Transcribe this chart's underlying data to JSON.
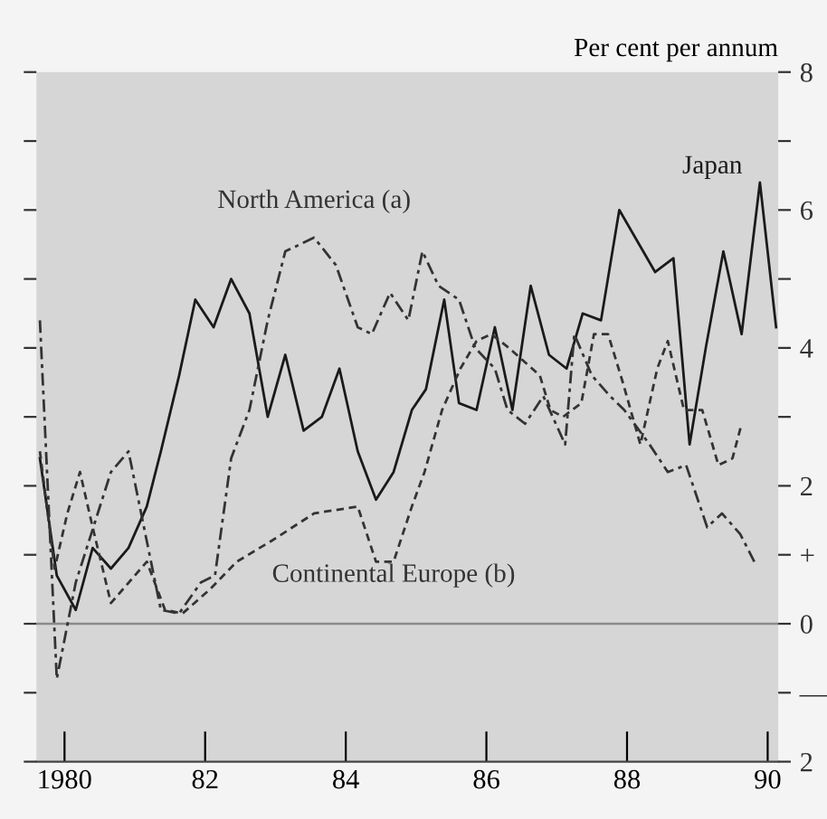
{
  "chart_data": {
    "type": "line",
    "ylabel": "Per cent per annum",
    "xlim": [
      1979.6,
      1990.15
    ],
    "xticks": [
      1980,
      {
        "value": 1982,
        "label": "82"
      },
      {
        "value": 1984,
        "label": "84"
      },
      {
        "value": 1986,
        "label": "86"
      },
      {
        "value": 1988,
        "label": "88"
      },
      {
        "value": 1990,
        "label": "90"
      }
    ],
    "ylim": [
      -2,
      8
    ],
    "yticks": [
      {
        "value": -2,
        "label": "2"
      },
      {
        "value": -1,
        "label": "—"
      },
      0,
      {
        "value": 1,
        "label": "+"
      },
      2,
      {
        "value": 3,
        "label": null
      },
      4,
      {
        "value": 5,
        "label": null
      },
      6,
      {
        "value": 7,
        "label": null
      },
      8
    ],
    "ref_lines": [
      {
        "axis": "y",
        "value": 0,
        "color": "#8a8a8a"
      }
    ],
    "grid": false,
    "legend": false,
    "marker": "none",
    "series": [
      {
        "name": "Japan",
        "color": "#1a1a1a",
        "line_style": "solid",
        "x": [
          1979.65,
          1979.89,
          1980.16,
          1980.4,
          1980.66,
          1980.91,
          1981.17,
          1981.37,
          1981.63,
          1981.86,
          1982.12,
          1982.37,
          1982.63,
          1982.89,
          1983.14,
          1983.4,
          1983.66,
          1983.91,
          1984.17,
          1984.43,
          1984.68,
          1984.94,
          1985.14,
          1985.4,
          1985.61,
          1985.86,
          1986.12,
          1986.37,
          1986.63,
          1986.89,
          1987.14,
          1987.37,
          1987.63,
          1987.89,
          1988.4,
          1988.66,
          1988.89,
          1989.12,
          1989.37,
          1989.63,
          1989.89,
          1990.12
        ],
        "values": [
          2.4,
          0.7,
          0.2,
          1.1,
          0.8,
          1.1,
          1.7,
          2.5,
          3.6,
          4.7,
          4.3,
          5.0,
          4.5,
          3.0,
          3.9,
          2.8,
          3.0,
          3.7,
          2.5,
          1.8,
          2.2,
          3.1,
          3.4,
          4.7,
          3.2,
          3.1,
          4.3,
          3.1,
          4.9,
          3.9,
          3.7,
          4.5,
          4.4,
          6.0,
          5.1,
          5.3,
          2.6,
          4.0,
          5.4,
          4.2,
          6.4,
          4.3
        ]
      },
      {
        "name": "North America (a)",
        "color": "#333333",
        "line_style": "dashdot",
        "x": [
          1979.65,
          1979.89,
          1980.16,
          1980.66,
          1980.91,
          1981.37,
          1981.63,
          1981.94,
          1982.14,
          1982.37,
          1982.63,
          1982.89,
          1983.14,
          1983.55,
          1983.86,
          1984.17,
          1984.37,
          1984.63,
          1984.89,
          1985.09,
          1985.32,
          1985.61,
          1985.84,
          1986.12,
          1986.3,
          1986.55,
          1986.81,
          1987.12,
          1987.25,
          1987.5,
          1987.76,
          1987.96,
          1988.32,
          1988.58,
          1988.84,
          1989.14,
          1989.35,
          1989.61,
          1989.81
        ],
        "values": [
          4.4,
          -0.8,
          0.6,
          2.2,
          2.5,
          0.2,
          0.15,
          0.6,
          0.7,
          2.4,
          3.1,
          4.4,
          5.4,
          5.6,
          5.2,
          4.3,
          4.2,
          4.8,
          4.4,
          5.4,
          4.9,
          4.7,
          4.0,
          3.7,
          3.1,
          2.9,
          3.3,
          2.6,
          4.2,
          3.6,
          3.3,
          3.1,
          2.6,
          2.2,
          2.3,
          1.4,
          1.6,
          1.3,
          0.9
        ]
      },
      {
        "name": "Continental Europe (b)",
        "color": "#333333",
        "line_style": "dashed",
        "x": [
          1979.65,
          1979.86,
          1980.04,
          1980.22,
          1980.4,
          1980.66,
          1981.17,
          1981.43,
          1981.68,
          1982.07,
          1982.45,
          1982.94,
          1983.55,
          1984.17,
          1984.43,
          1984.68,
          1984.94,
          1985.12,
          1985.37,
          1985.63,
          1985.86,
          1986.07,
          1986.32,
          1986.76,
          1986.91,
          1987.09,
          1987.35,
          1987.53,
          1987.73,
          1987.94,
          1988.19,
          1988.43,
          1988.58,
          1988.81,
          1989.07,
          1989.3,
          1989.5,
          1989.63
        ],
        "values": [
          2.5,
          0.8,
          1.6,
          2.2,
          1.4,
          0.3,
          0.9,
          0.2,
          0.15,
          0.5,
          0.9,
          1.2,
          1.6,
          1.7,
          0.9,
          0.9,
          1.7,
          2.2,
          3.1,
          3.7,
          4.1,
          4.2,
          4.0,
          3.6,
          3.1,
          3.0,
          3.2,
          4.2,
          4.2,
          3.5,
          2.6,
          3.7,
          4.1,
          3.1,
          3.1,
          2.3,
          2.4,
          2.9
        ]
      }
    ]
  }
}
